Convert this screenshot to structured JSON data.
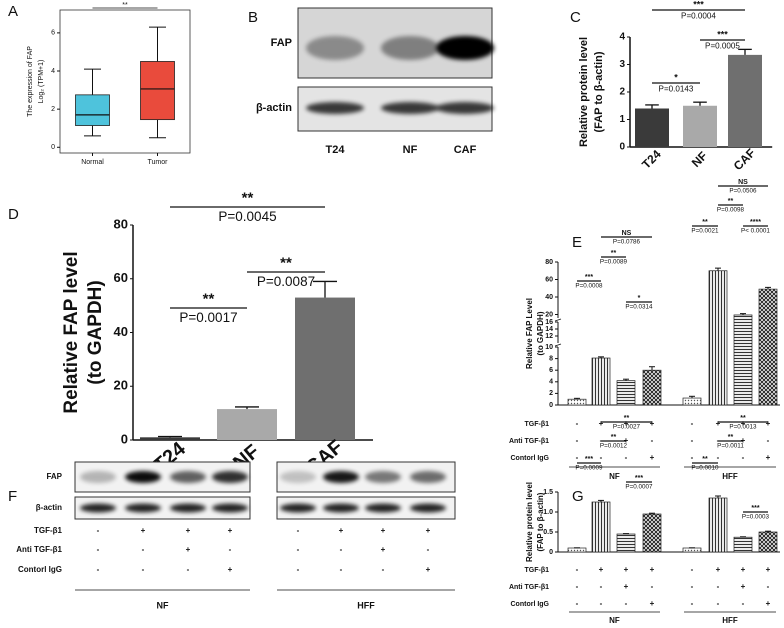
{
  "chart_data": [
    {
      "type": "box",
      "label": "A",
      "ylabel": [
        "The expression of FAP",
        "Log₂ (TPM+1)"
      ],
      "categories": [
        "Normal",
        "Tumor"
      ],
      "colors": [
        "#4ec3dc",
        "#e94b3c"
      ],
      "boxes": [
        {
          "whisker_low": 0.6,
          "q1": 1.14,
          "median": 1.7,
          "q3": 2.75,
          "whisker_high": 4.1
        },
        {
          "whisker_low": 0.5,
          "q1": 1.45,
          "median": 3.06,
          "q3": 4.5,
          "whisker_high": 6.3
        }
      ],
      "ylim": [
        -0.3,
        7.2
      ],
      "yticks": [
        0,
        2,
        4,
        6
      ],
      "annotations": [
        {
          "stars": "**"
        }
      ]
    },
    {
      "type": "bar",
      "label": "C",
      "ylabel": [
        "Relative protein level",
        "(FAP  to β-actin)"
      ],
      "categories": [
        "T24",
        "NF",
        "CAF"
      ],
      "values": [
        1.4,
        1.5,
        3.35
      ],
      "errors": [
        0.13,
        0.13,
        0.2
      ],
      "colors": [
        "#3a3a3a",
        "#a9a9a9",
        "#6f6f6f"
      ],
      "ylim": [
        0,
        4
      ],
      "yticks": [
        0,
        1,
        2,
        3,
        4
      ],
      "annotations": [
        {
          "stars": "*",
          "p": "P=0.0143"
        },
        {
          "stars": "***",
          "p": "P=0.0005"
        },
        {
          "stars": "***",
          "p": "P=0.0004"
        }
      ]
    },
    {
      "type": "bar",
      "label": "D",
      "ylabel": [
        "Relative FAP level",
        "(to GAPDH)"
      ],
      "categories": [
        "T24",
        "NF",
        "CAF"
      ],
      "values": [
        1,
        11.5,
        53
      ],
      "errors": [
        0.3,
        0.8,
        6
      ],
      "colors": [
        "#3a3a3a",
        "#a9a9a9",
        "#6f6f6f"
      ],
      "ylim": [
        0,
        80
      ],
      "yticks": [
        0,
        20,
        40,
        60,
        80
      ],
      "annotations": [
        {
          "stars": "**",
          "p": "P=0.0017"
        },
        {
          "stars": "**",
          "p": "P=0.0087"
        },
        {
          "stars": "**",
          "p": "P=0.0045"
        }
      ]
    },
    {
      "type": "grouped_bar",
      "label": "E",
      "ylabel": [
        "Relative FAP Level",
        "(to GAPDH)"
      ],
      "fills": [
        "dots",
        "vlines",
        "hlines",
        "cross"
      ],
      "groups": [
        {
          "name": "NF",
          "values": [
            1.0,
            8.1,
            4.2,
            6.0
          ],
          "errors": [
            0.15,
            0.2,
            0.25,
            0.6
          ],
          "annotations": [
            {
              "stars": "***",
              "p": "P=0.0008"
            },
            {
              "stars": "**",
              "p": "P=0.0089"
            },
            {
              "stars": "*",
              "p": "P=0.0314"
            },
            {
              "stars": "NS",
              "p": "P=0.0786"
            }
          ]
        },
        {
          "name": "HFF",
          "values": [
            1.2,
            70,
            19.5,
            49
          ],
          "errors": [
            0.3,
            3,
            1.5,
            2
          ],
          "annotations": [
            {
              "stars": "**",
              "p": "P=0.0021"
            },
            {
              "stars": "**",
              "p": "P=0.0098"
            },
            {
              "stars": "****",
              "p": "P< 0.0001"
            },
            {
              "stars": "NS",
              "p": "P=0.0506"
            }
          ]
        }
      ],
      "ylim": [
        0,
        80
      ],
      "ysegments": [
        [
          0,
          10
        ],
        [
          10,
          16
        ],
        [
          16,
          80
        ]
      ],
      "yticks": [
        0,
        2,
        4,
        6,
        8,
        10,
        12,
        14,
        16,
        20,
        40,
        60,
        80
      ],
      "conditions": {
        "labels": [
          "TGF-β1",
          "Anti TGF-β1",
          "Contorl IgG"
        ],
        "signs": [
          [
            "-",
            "+",
            "+",
            "+"
          ],
          [
            "-",
            "-",
            "+",
            "-"
          ],
          [
            "-",
            "-",
            "-",
            "+"
          ]
        ]
      }
    },
    {
      "type": "grouped_bar",
      "label": "G",
      "ylabel": [
        "Relative protein level",
        "(FAP  to β-actin)"
      ],
      "fills": [
        "dots",
        "vlines",
        "hlines",
        "cross"
      ],
      "groups": [
        {
          "name": "NF",
          "values": [
            0.1,
            1.25,
            0.45,
            0.95
          ],
          "errors": [
            0.005,
            0.04,
            0.01,
            0.02
          ],
          "annotations": [
            {
              "stars": "***",
              "p": "P=0.0009"
            },
            {
              "stars": "**",
              "p": "P=0.0012"
            },
            {
              "stars": "***",
              "p": "P=0.0007"
            },
            {
              "stars": "**",
              "p": "P=0.0027"
            }
          ]
        },
        {
          "name": "HFF",
          "values": [
            0.1,
            1.35,
            0.37,
            0.5
          ],
          "errors": [
            0.005,
            0.05,
            0.01,
            0.02
          ],
          "annotations": [
            {
              "stars": "**",
              "p": "P=0.0010"
            },
            {
              "stars": "**",
              "p": "P=0.0011"
            },
            {
              "stars": "***",
              "p": "P=0.0003"
            },
            {
              "stars": "**",
              "p": "P=0.0013"
            }
          ]
        }
      ],
      "ylim": [
        0,
        1.5
      ],
      "yticks": [
        0,
        0.5,
        {
          "value": 1,
          "label": "1.0"
        },
        1.5
      ],
      "conditions": {
        "labels": [
          "TGF-β1",
          "Anti TGF-β1",
          "Contorl IgG"
        ],
        "signs": [
          [
            "-",
            "+",
            "+",
            "+"
          ],
          [
            "-",
            "-",
            "+",
            "-"
          ],
          [
            "-",
            "-",
            "-",
            "+"
          ]
        ]
      }
    }
  ],
  "blots": [
    {
      "label": "B",
      "rows": [
        "FAP",
        "β-actin"
      ],
      "lanes": [
        "T24",
        "NF",
        "CAF"
      ]
    },
    {
      "label": "F",
      "rows": [
        "FAP",
        "β-actin"
      ],
      "groups": [
        "NF",
        "HFF"
      ],
      "conditions": {
        "labels": [
          "TGF-β1",
          "Anti TGF-β1",
          "Contorl IgG"
        ],
        "signs": [
          [
            "-",
            "+",
            "+",
            "+"
          ],
          [
            "-",
            "-",
            "+",
            "-"
          ],
          [
            "-",
            "-",
            "-",
            "+"
          ]
        ]
      }
    }
  ]
}
